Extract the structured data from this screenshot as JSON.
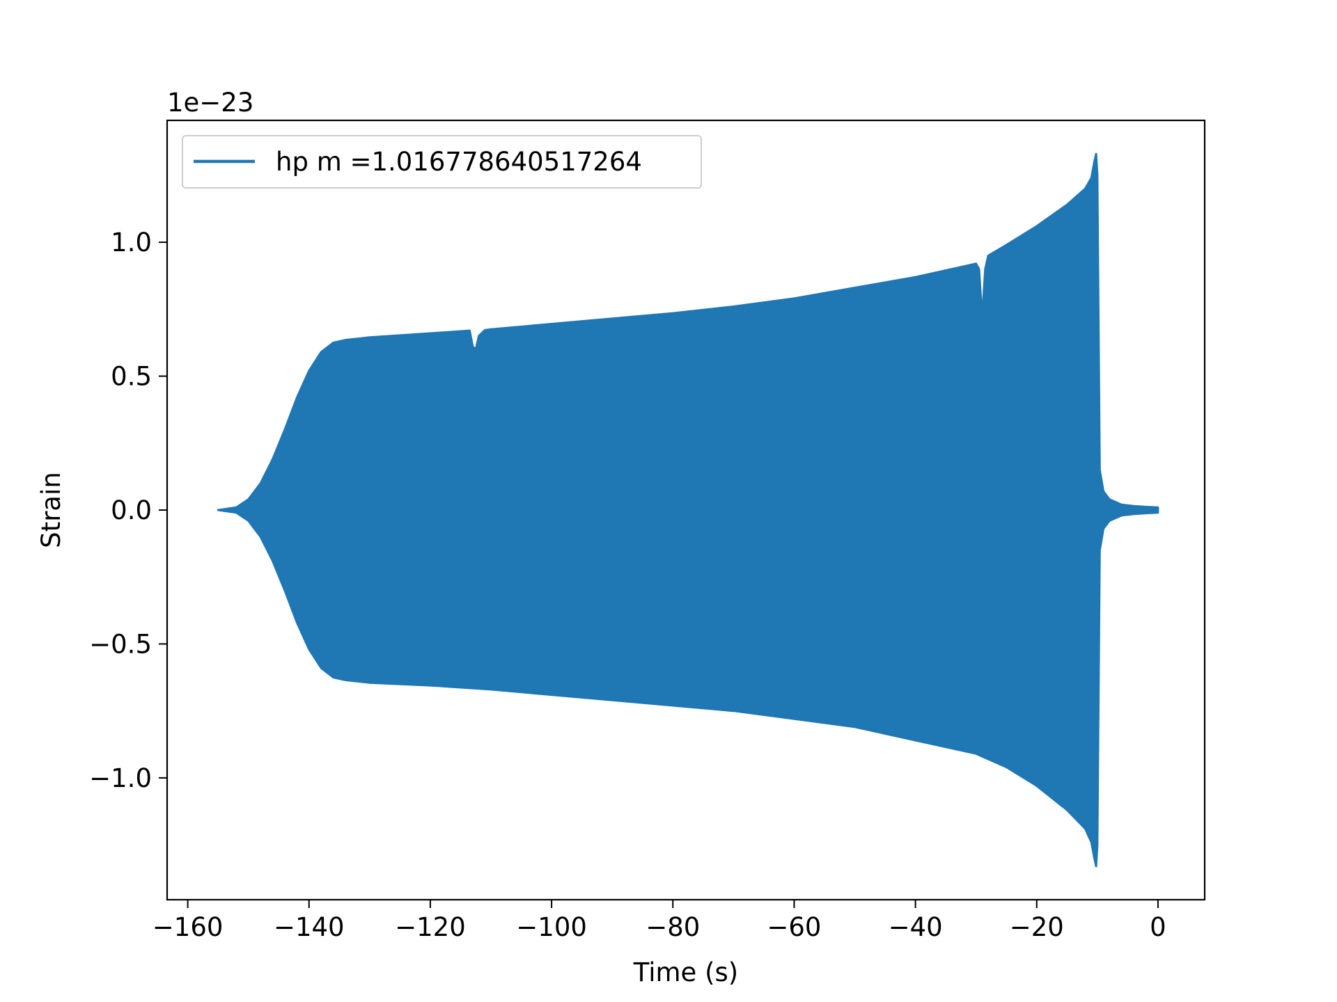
{
  "chart_data": {
    "type": "line",
    "title": "",
    "xlabel": "Time (s)",
    "ylabel": "Strain",
    "y_offset_text": "1e−23",
    "xlim": [
      -163.4,
      7.7
    ],
    "ylim": [
      -1.455,
      1.455
    ],
    "x_ticks": [
      -160,
      -140,
      -120,
      -100,
      -80,
      -60,
      -40,
      -20,
      0
    ],
    "x_tick_labels": [
      "−160",
      "−140",
      "−120",
      "−100",
      "−80",
      "−60",
      "−40",
      "−20",
      "0"
    ],
    "y_ticks": [
      -1.0,
      -0.5,
      0.0,
      0.5,
      1.0
    ],
    "y_tick_labels": [
      "−1.0",
      "−0.5",
      "0.0",
      "0.5",
      "1.0"
    ],
    "grid": false,
    "legend_position": "upper-left",
    "series": [
      {
        "name": "hp m =1.016778640517264",
        "color": "#1f77b4",
        "envelope_upper": {
          "x": [
            -155.0,
            -152.0,
            -150.0,
            -148.0,
            -146.0,
            -144.0,
            -142.0,
            -140.0,
            -138.0,
            -136.0,
            -134.0,
            -132.0,
            -130.0,
            -120.0,
            -113.5,
            -113.0,
            -112.5,
            -112.0,
            -111.0,
            -110.0,
            -100.0,
            -90.0,
            -80.0,
            -70.0,
            -60.0,
            -50.0,
            -40.0,
            -30.0,
            -29.5,
            -29.0,
            -28.5,
            -28.0,
            -25.0,
            -20.0,
            -15.0,
            -12.0,
            -11.0,
            -10.5,
            -10.2,
            -10.0,
            -9.6,
            -9.0,
            -8.0,
            -6.0,
            -4.0,
            -2.0,
            0.0
          ],
          "y": [
            0.0,
            0.01,
            0.04,
            0.1,
            0.19,
            0.3,
            0.42,
            0.52,
            0.59,
            0.625,
            0.635,
            0.64,
            0.645,
            0.66,
            0.67,
            0.61,
            0.6,
            0.65,
            0.672,
            0.675,
            0.695,
            0.715,
            0.735,
            0.76,
            0.79,
            0.83,
            0.87,
            0.92,
            0.9,
            0.72,
            0.9,
            0.95,
            0.99,
            1.06,
            1.14,
            1.2,
            1.24,
            1.3,
            1.33,
            1.25,
            0.15,
            0.07,
            0.04,
            0.02,
            0.015,
            0.012,
            0.01
          ]
        },
        "envelope_lower": {
          "x": [
            -155.0,
            -152.0,
            -150.0,
            -148.0,
            -146.0,
            -144.0,
            -142.0,
            -140.0,
            -138.0,
            -136.0,
            -134.0,
            -132.0,
            -130.0,
            -120.0,
            -110.0,
            -100.0,
            -90.0,
            -80.0,
            -70.0,
            -60.0,
            -50.0,
            -40.0,
            -30.0,
            -25.0,
            -20.0,
            -15.0,
            -12.0,
            -11.0,
            -10.5,
            -10.2,
            -10.0,
            -9.6,
            -9.0,
            -8.0,
            -6.0,
            -4.0,
            -2.0,
            0.0
          ],
          "y": [
            0.0,
            -0.01,
            -0.04,
            -0.1,
            -0.19,
            -0.3,
            -0.42,
            -0.52,
            -0.59,
            -0.625,
            -0.635,
            -0.64,
            -0.645,
            -0.655,
            -0.67,
            -0.69,
            -0.71,
            -0.73,
            -0.75,
            -0.78,
            -0.81,
            -0.86,
            -0.91,
            -0.96,
            -1.03,
            -1.12,
            -1.19,
            -1.24,
            -1.3,
            -1.33,
            -1.25,
            -0.15,
            -0.07,
            -0.04,
            -0.02,
            -0.015,
            -0.012,
            -0.01
          ]
        }
      }
    ]
  }
}
